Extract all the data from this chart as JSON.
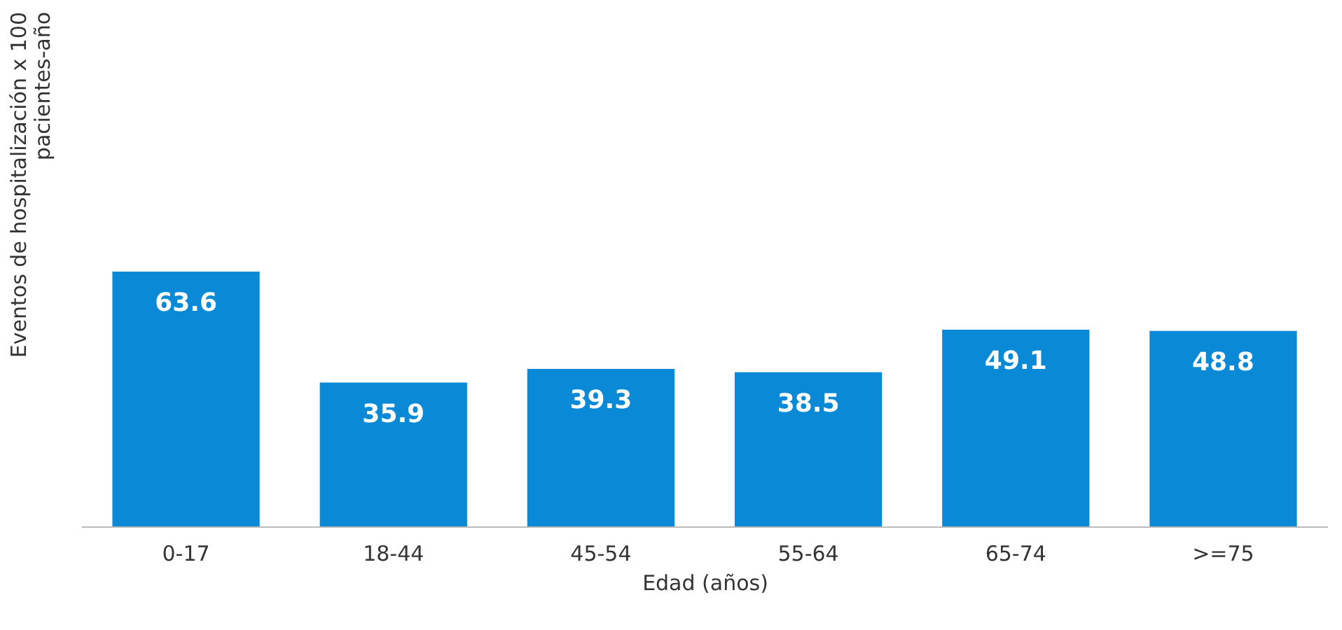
{
  "chart_data": {
    "type": "bar",
    "categories": [
      "0-17",
      "18-44",
      "45-54",
      "55-64",
      "65-74",
      ">=75"
    ],
    "values": [
      63.6,
      35.9,
      39.3,
      38.5,
      49.1,
      48.8
    ],
    "color": "#0a8ad6",
    "data_labels": true,
    "xlabel": "Edad (años)",
    "ylabel": "Eventos de hospitalización x 100 pacientes-año",
    "grid": false
  }
}
